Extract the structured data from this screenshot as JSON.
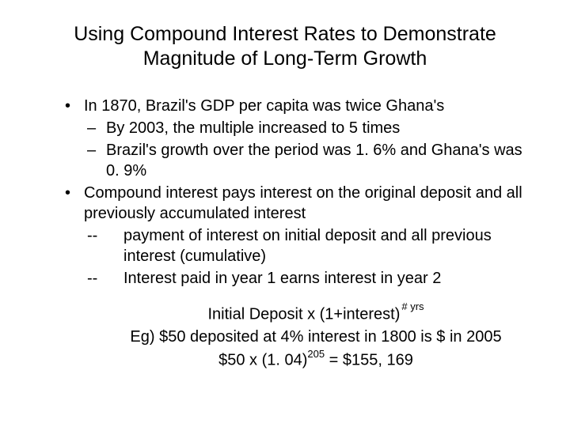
{
  "title": "Using Compound Interest Rates to Demonstrate Magnitude of Long-Term Growth",
  "bullets": {
    "b1": "In 1870, Brazil's GDP per capita was twice Ghana's",
    "b1_sub1": "By 2003, the multiple increased to 5 times",
    "b1_sub2": "Brazil's growth over the period was 1. 6% and Ghana's was 0. 9%",
    "b2": "Compound interest pays interest on the original deposit and all previously accumulated interest",
    "b2_sub1": "payment of interest on initial deposit and all previous interest (cumulative)",
    "b2_sub2": "Interest paid in year 1 earns interest in year 2"
  },
  "formula": {
    "line1_left": "Initial Deposit x (1+interest)",
    "line1_exp": "# yrs",
    "line2": "Eg)  $50 deposited at 4% interest in 1800 is $ in 2005",
    "line3_left": "$50 x (1. 04)",
    "line3_exp": "205",
    "line3_right": " = $155, 169"
  },
  "style": {
    "background": "#ffffff",
    "text_color": "#000000",
    "title_fontsize": 25,
    "body_fontsize": 20,
    "sup_fontsize": 13
  }
}
